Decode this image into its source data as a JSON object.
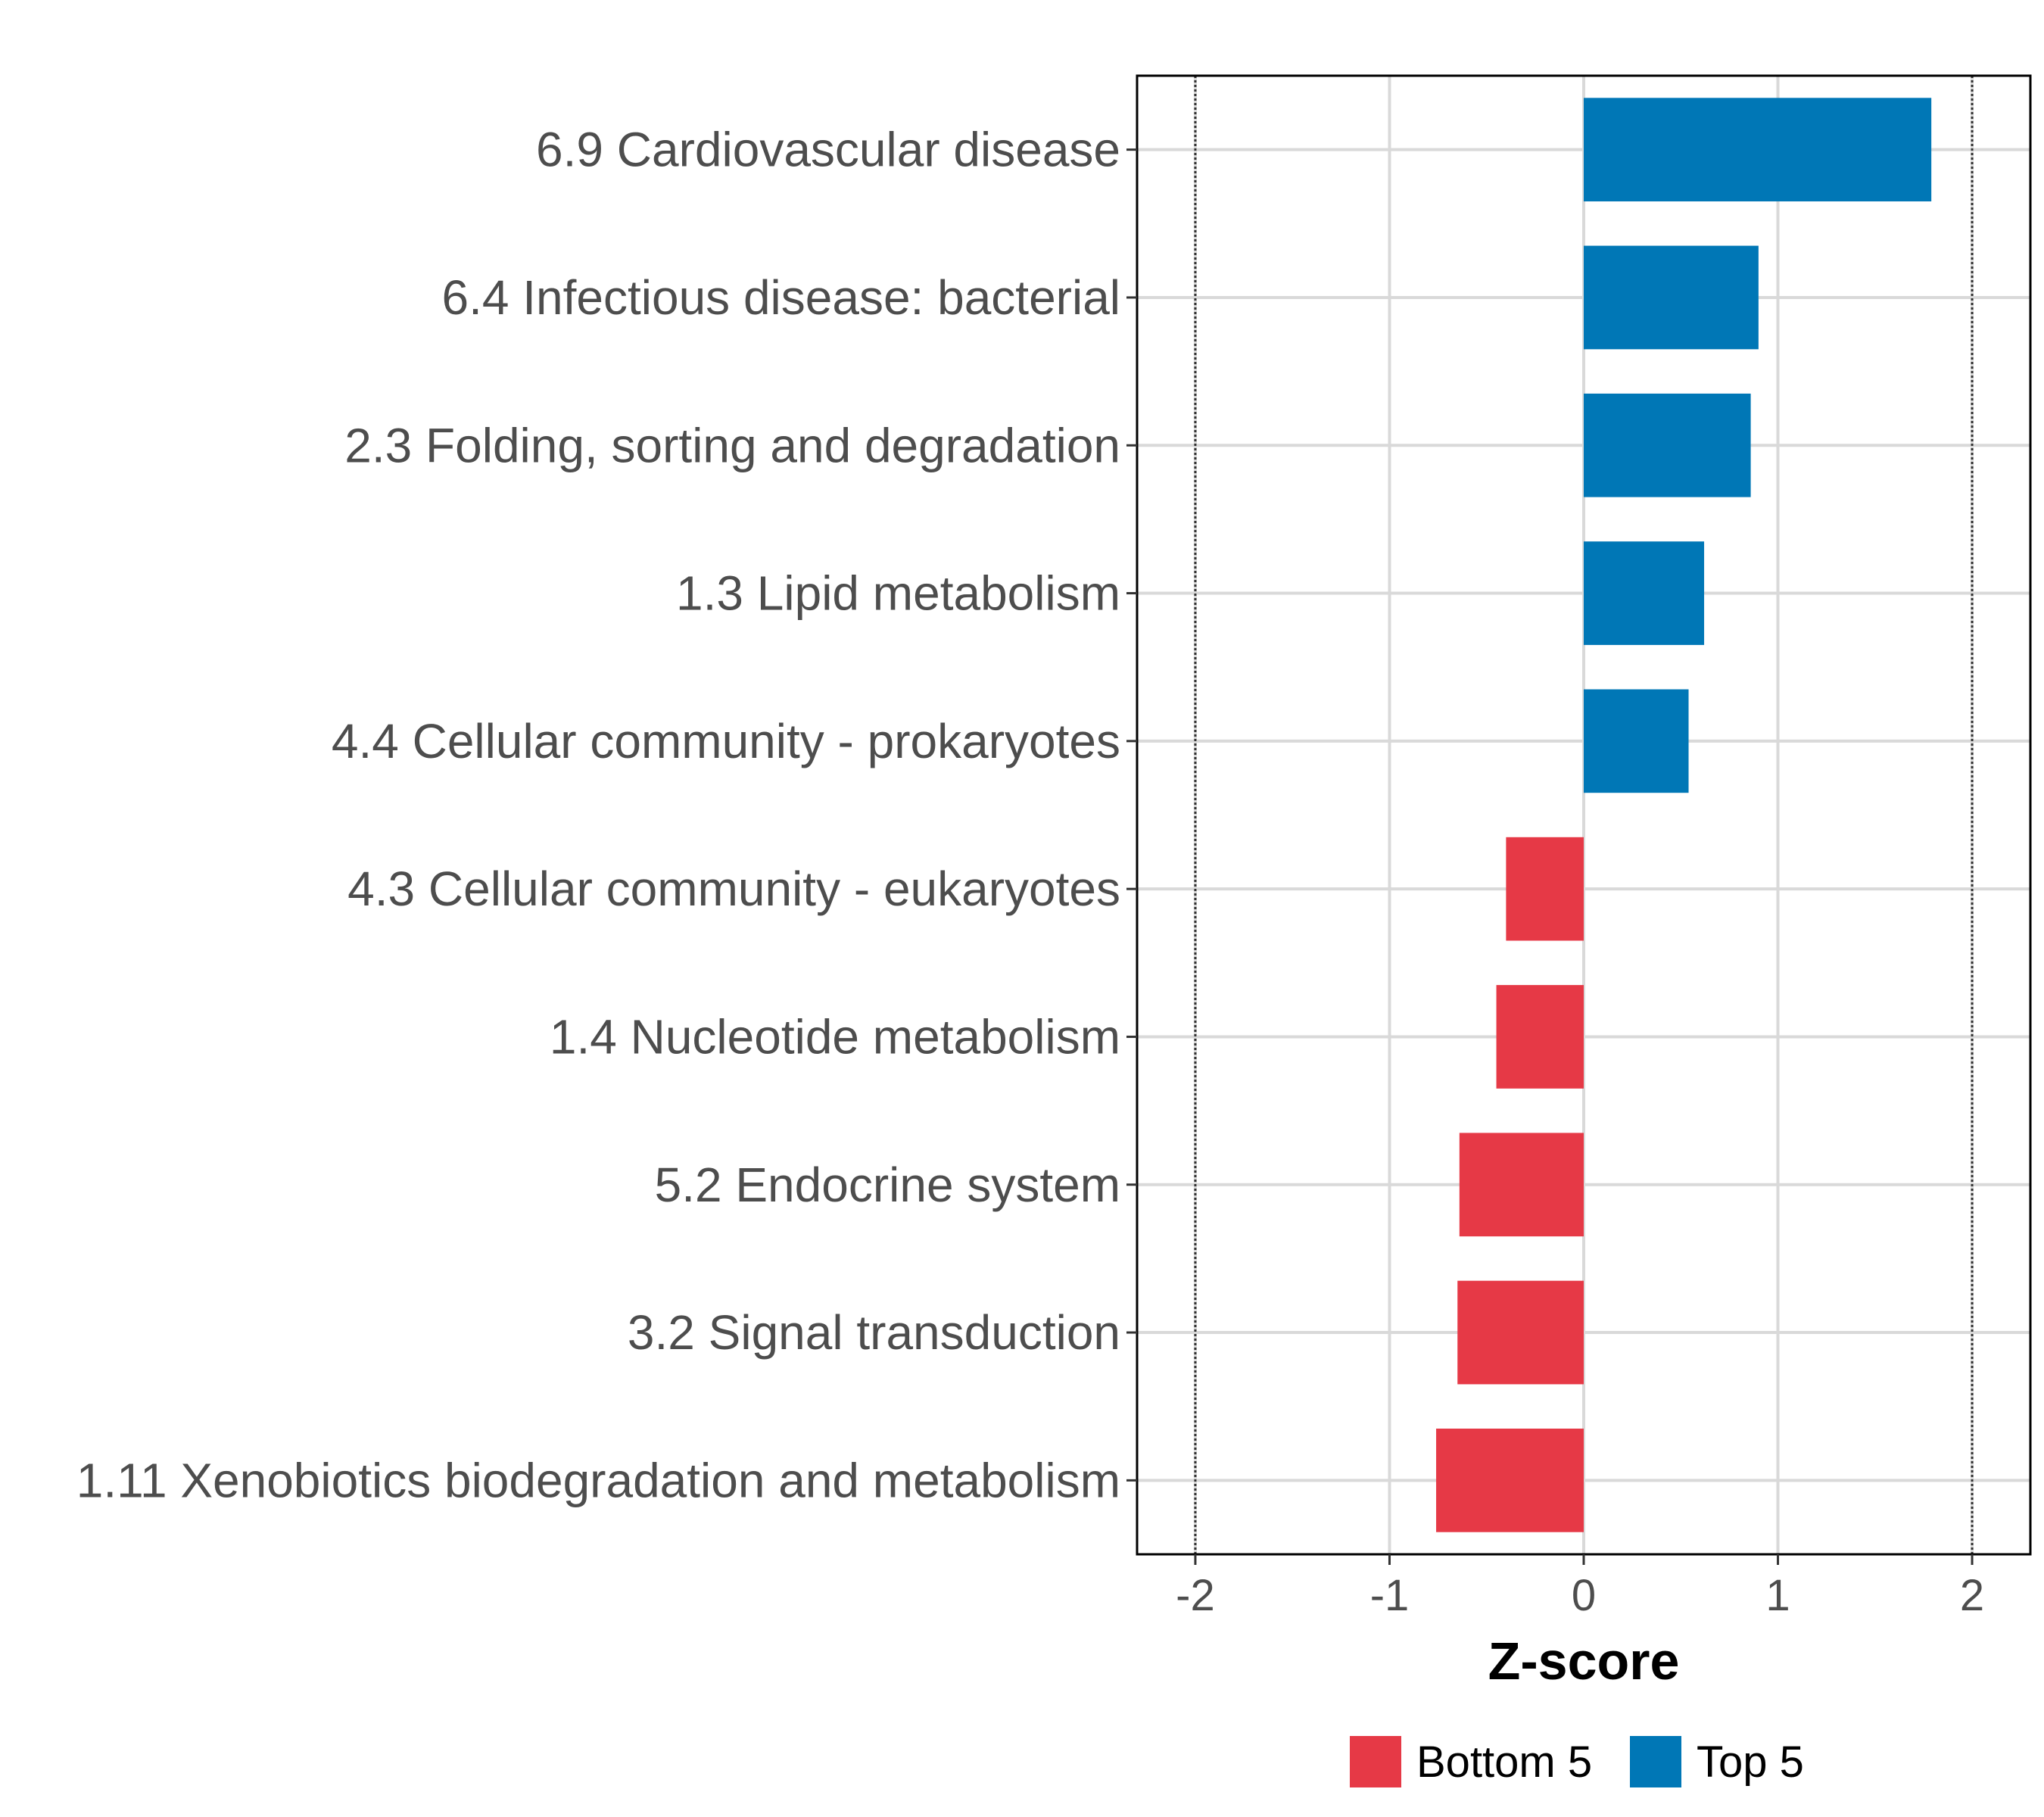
{
  "chart_data": {
    "type": "bar",
    "orientation": "horizontal",
    "title": "",
    "xlabel": "Z-score",
    "ylabel": "",
    "xlim": [
      -2.3,
      2.3
    ],
    "xticks": [
      -2,
      -1,
      0,
      1,
      2
    ],
    "xtick_labels": [
      "-2",
      "-1",
      "0",
      "1",
      "2"
    ],
    "reference_lines": [
      -2,
      2
    ],
    "grid": true,
    "categories": [
      "6.9 Cardiovascular disease",
      "6.4 Infectious disease: bacterial",
      "2.3 Folding, sorting and degradation",
      "1.3 Lipid metabolism",
      "4.4 Cellular community - prokaryotes",
      "4.3 Cellular community - eukaryotes",
      "1.4 Nucleotide metabolism",
      "5.2 Endocrine system",
      "3.2 Signal transduction",
      "1.11 Xenobiotics biodegradation and metabolism"
    ],
    "values": [
      1.79,
      0.9,
      0.86,
      0.62,
      0.54,
      -0.4,
      -0.45,
      -0.64,
      -0.65,
      -0.76
    ],
    "groups": [
      "Top 5",
      "Top 5",
      "Top 5",
      "Top 5",
      "Top 5",
      "Bottom 5",
      "Bottom 5",
      "Bottom 5",
      "Bottom 5",
      "Bottom 5"
    ],
    "legend": {
      "position": "bottom",
      "entries": [
        {
          "label": "Bottom 5",
          "color": "#e63946"
        },
        {
          "label": "Top 5",
          "color": "#0077b6"
        }
      ]
    }
  }
}
